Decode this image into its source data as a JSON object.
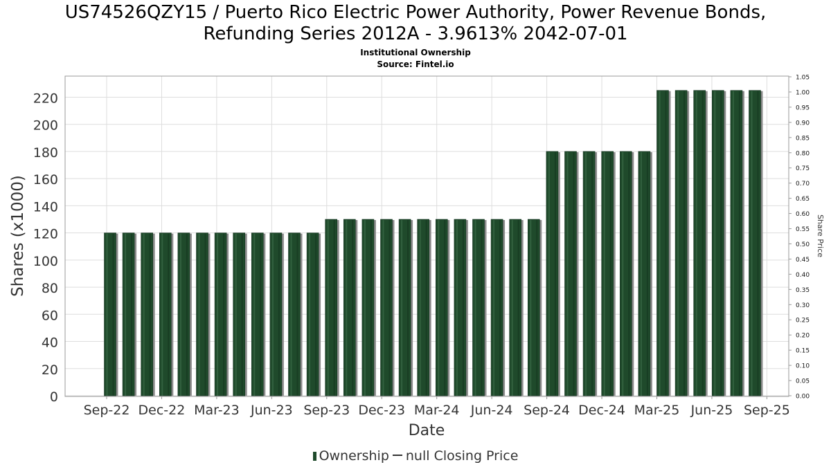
{
  "title_line1": "US74526QZY15 / Puerto Rico Electric Power Authority, Power Revenue Bonds,",
  "title_line2": "Refunding Series 2012A - 3.9613% 2042-07-01",
  "subtitle_line1": "Institutional Ownership",
  "subtitle_line2": "Source: Fintel.io",
  "legend": {
    "ownership": "Ownership",
    "price": "null Closing Price"
  },
  "colors": {
    "bar": "#1f4a2b",
    "bar_shadow": "#8c8c8c",
    "grid": "#dddddd",
    "price_line": "#333333"
  },
  "chart_data": {
    "type": "bar",
    "xlabel": "Date",
    "ylabel": "Shares (x1000)",
    "y2label": "Share Price",
    "ylim": [
      0,
      230
    ],
    "y2lim": [
      0,
      1.05
    ],
    "yticks": [
      "0",
      "20",
      "40",
      "60",
      "80",
      "100",
      "120",
      "140",
      "160",
      "180",
      "200",
      "220"
    ],
    "y2ticks": [
      "0.00",
      "0.05",
      "0.10",
      "0.15",
      "0.20",
      "0.25",
      "0.30",
      "0.35",
      "0.40",
      "0.45",
      "0.50",
      "0.55",
      "0.60",
      "0.65",
      "0.70",
      "0.75",
      "0.80",
      "0.85",
      "0.90",
      "0.95",
      "1.00",
      "1.05"
    ],
    "xticks": [
      "Sep-22",
      "Dec-22",
      "Mar-23",
      "Jun-23",
      "Sep-23",
      "Dec-23",
      "Mar-24",
      "Jun-24",
      "Sep-24",
      "Dec-24",
      "Mar-25",
      "Jun-25",
      "Sep-25"
    ],
    "grid": true,
    "legend_position": "bottom",
    "series": [
      {
        "name": "Ownership",
        "values": [
          120,
          120,
          120,
          120,
          120,
          120,
          120,
          120,
          120,
          120,
          120,
          120,
          130,
          130,
          130,
          130,
          130,
          130,
          130,
          130,
          130,
          130,
          130,
          130,
          180,
          180,
          180,
          180,
          180,
          180,
          225,
          225,
          225,
          225,
          225,
          225
        ]
      }
    ]
  }
}
